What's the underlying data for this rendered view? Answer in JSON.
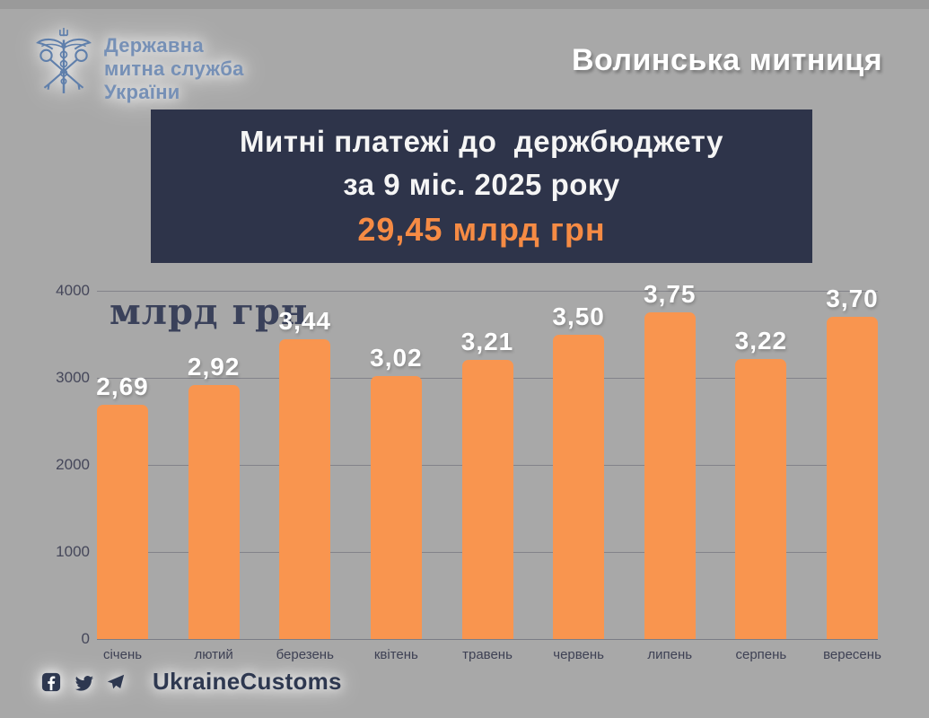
{
  "header": {
    "agency_name_lines": [
      "Державна",
      "митна служба",
      "України"
    ],
    "office_title": "Волинська митниця"
  },
  "title_box": {
    "line1": "Митні платежі до  держбюджету",
    "line2": "за 9 міс. 2025 року",
    "highlight": "29,45 млрд грн"
  },
  "chart_data": {
    "type": "bar",
    "title": "млрд грн",
    "categories": [
      "січень",
      "лютий",
      "березень",
      "квітень",
      "травень",
      "червень",
      "липень",
      "серпень",
      "вересень"
    ],
    "values": [
      2690,
      2920,
      3440,
      3020,
      3210,
      3500,
      3750,
      3220,
      3700
    ],
    "bar_labels": [
      "2,69",
      "2,92",
      "3,44",
      "3,02",
      "3,21",
      "3,50",
      "3,75",
      "3,22",
      "3,70"
    ],
    "values_unit": "млрд грн",
    "y_ticks": [
      4000,
      3000,
      2000,
      1000,
      0
    ],
    "ylim": [
      0,
      4000
    ],
    "grid": true,
    "legend": "none",
    "bar_color": "#f9954f"
  },
  "footer": {
    "handle": "UkraineCustoms",
    "social_icons": [
      "facebook-icon",
      "twitter-icon",
      "telegram-icon"
    ]
  },
  "colors": {
    "background": "#a8a8a8",
    "panel_navy": "#2e344a",
    "accent_orange": "#f68b44",
    "bar_orange": "#f9954f",
    "navy_text": "#3a415a",
    "steel_blue": "#7690b6",
    "white": "#ffffff"
  }
}
